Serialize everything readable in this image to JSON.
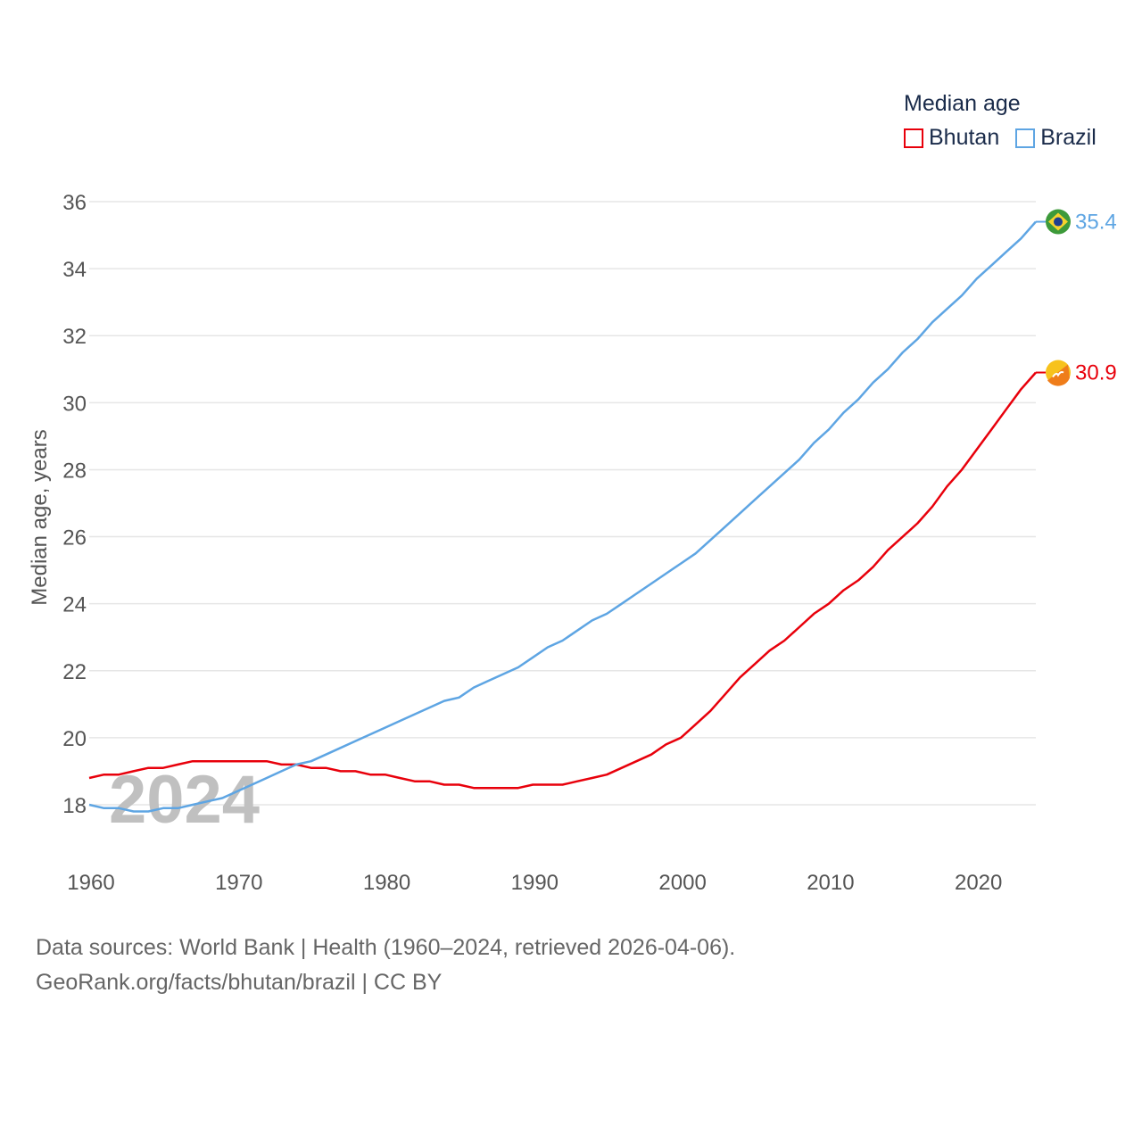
{
  "chart_data": {
    "type": "line",
    "title": "Median age",
    "xlabel": "",
    "ylabel": "Median age, years",
    "xlim": [
      1960,
      2024
    ],
    "ylim": [
      17,
      36
    ],
    "yticks": [
      18,
      20,
      22,
      24,
      26,
      28,
      30,
      32,
      34,
      36
    ],
    "xticks": [
      1960,
      1970,
      1980,
      1990,
      2000,
      2010,
      2020
    ],
    "year_watermark": "2024",
    "grid": true,
    "legend_position": "top-right",
    "x": [
      1960,
      1961,
      1962,
      1963,
      1964,
      1965,
      1966,
      1967,
      1968,
      1969,
      1970,
      1971,
      1972,
      1973,
      1974,
      1975,
      1976,
      1977,
      1978,
      1979,
      1980,
      1981,
      1982,
      1983,
      1984,
      1985,
      1986,
      1987,
      1988,
      1989,
      1990,
      1991,
      1992,
      1993,
      1994,
      1995,
      1996,
      1997,
      1998,
      1999,
      2000,
      2001,
      2002,
      2003,
      2004,
      2005,
      2006,
      2007,
      2008,
      2009,
      2010,
      2011,
      2012,
      2013,
      2014,
      2015,
      2016,
      2017,
      2018,
      2019,
      2020,
      2021,
      2022,
      2023,
      2024
    ],
    "series": [
      {
        "name": "Bhutan",
        "color": "#e8000b",
        "end_label": "30.9",
        "icon": "bhutan-flag-icon",
        "values": [
          18.8,
          18.9,
          18.9,
          19.0,
          19.1,
          19.1,
          19.2,
          19.3,
          19.3,
          19.3,
          19.3,
          19.3,
          19.3,
          19.2,
          19.2,
          19.1,
          19.1,
          19.0,
          19.0,
          18.9,
          18.9,
          18.8,
          18.7,
          18.7,
          18.6,
          18.6,
          18.5,
          18.5,
          18.5,
          18.5,
          18.6,
          18.6,
          18.6,
          18.7,
          18.8,
          18.9,
          19.1,
          19.3,
          19.5,
          19.8,
          20.0,
          20.4,
          20.8,
          21.3,
          21.8,
          22.2,
          22.6,
          22.9,
          23.3,
          23.7,
          24.0,
          24.4,
          24.7,
          25.1,
          25.6,
          26.0,
          26.4,
          26.9,
          27.5,
          28.0,
          28.6,
          29.2,
          29.8,
          30.4,
          30.9
        ]
      },
      {
        "name": "Brazil",
        "color": "#5ea5e3",
        "end_label": "35.4",
        "icon": "brazil-flag-icon",
        "values": [
          18.0,
          17.9,
          17.9,
          17.8,
          17.8,
          17.9,
          17.9,
          18.0,
          18.1,
          18.2,
          18.4,
          18.6,
          18.8,
          19.0,
          19.2,
          19.3,
          19.5,
          19.7,
          19.9,
          20.1,
          20.3,
          20.5,
          20.7,
          20.9,
          21.1,
          21.2,
          21.5,
          21.7,
          21.9,
          22.1,
          22.4,
          22.7,
          22.9,
          23.2,
          23.5,
          23.7,
          24.0,
          24.3,
          24.6,
          24.9,
          25.2,
          25.5,
          25.9,
          26.3,
          26.7,
          27.1,
          27.5,
          27.9,
          28.3,
          28.8,
          29.2,
          29.7,
          30.1,
          30.6,
          31.0,
          31.5,
          31.9,
          32.4,
          32.8,
          33.2,
          33.7,
          34.1,
          34.5,
          34.9,
          35.4
        ]
      }
    ]
  },
  "legend": {
    "title": "Median age",
    "items": [
      "Bhutan",
      "Brazil"
    ]
  },
  "footer": {
    "line1": "Data sources: World Bank | Health (1960–2024, retrieved 2026-04-06).",
    "line2": "GeoRank.org/facts/bhutan/brazil | CC BY"
  }
}
